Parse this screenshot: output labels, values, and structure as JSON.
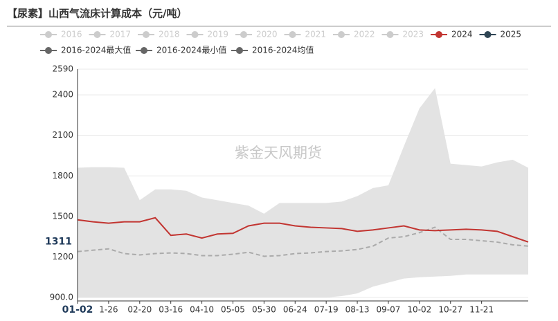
{
  "chart_data": {
    "type": "line",
    "title": "【尿素】山西气流床计算成本（元/吨）",
    "watermark": "紫金天风期货",
    "last_value": 1311,
    "categories": [
      "01-02",
      null,
      "1-26",
      null,
      "02-20",
      null,
      "03-16",
      null,
      "04-10",
      null,
      "05-05",
      null,
      "05-30",
      null,
      "06-24",
      null,
      "07-19",
      null,
      "08-13",
      null,
      "09-07",
      null,
      "10-02",
      null,
      "10-27",
      null,
      "11-21",
      null,
      null,
      null
    ],
    "ylim": [
      900,
      2590
    ],
    "yticks": [
      {
        "value": 900,
        "label": "900.0"
      },
      1200,
      1500,
      1800,
      2100,
      2400,
      2590
    ],
    "grid": true,
    "series": [
      {
        "name": "2016",
        "color": "#cccccc"
      },
      {
        "name": "2017",
        "color": "#cccccc"
      },
      {
        "name": "2018",
        "color": "#cccccc"
      },
      {
        "name": "2019",
        "color": "#cccccc"
      },
      {
        "name": "2020",
        "color": "#cccccc"
      },
      {
        "name": "2021",
        "color": "#cccccc"
      },
      {
        "name": "2022",
        "color": "#cccccc"
      },
      {
        "name": "2023",
        "color": "#cccccc"
      },
      {
        "name": "2024",
        "color": "#c23531",
        "style": "line",
        "values": [
          1475,
          1460,
          1450,
          1460,
          1460,
          1490,
          1360,
          1370,
          1340,
          1370,
          1375,
          1430,
          1450,
          1450,
          1430,
          1420,
          1415,
          1410,
          1390,
          1400,
          1415,
          1430,
          1400,
          1395,
          1400,
          1405,
          1400,
          1390,
          1350,
          1311
        ]
      },
      {
        "name": "2025",
        "color": "#2f4554"
      },
      {
        "name": "2016-2024最大值",
        "color": "#666666",
        "style": "band-max",
        "values": [
          1860,
          1865,
          1865,
          1860,
          1620,
          1700,
          1700,
          1690,
          1640,
          1620,
          1600,
          1580,
          1520,
          1600,
          1600,
          1600,
          1600,
          1610,
          1650,
          1710,
          1730,
          2020,
          2300,
          2450,
          1890,
          1880,
          1870,
          1900,
          1920,
          1860
        ]
      },
      {
        "name": "2016-2024最小值",
        "color": "#666666",
        "style": "band-min",
        "values": [
          900,
          900,
          900,
          900,
          900,
          900,
          900,
          900,
          900,
          900,
          900,
          900,
          900,
          900,
          900,
          900,
          900,
          910,
          930,
          980,
          1010,
          1040,
          1050,
          1055,
          1060,
          1070,
          1070,
          1070,
          1070,
          1070
        ]
      },
      {
        "name": "2016-2024均值",
        "color": "#666666",
        "style": "dashed",
        "line_color": "#aaaaaa",
        "values": [
          1240,
          1250,
          1260,
          1225,
          1215,
          1225,
          1230,
          1225,
          1210,
          1210,
          1220,
          1235,
          1205,
          1210,
          1225,
          1230,
          1240,
          1245,
          1255,
          1280,
          1340,
          1350,
          1380,
          1420,
          1330,
          1330,
          1320,
          1310,
          1290,
          1280
        ]
      }
    ]
  }
}
